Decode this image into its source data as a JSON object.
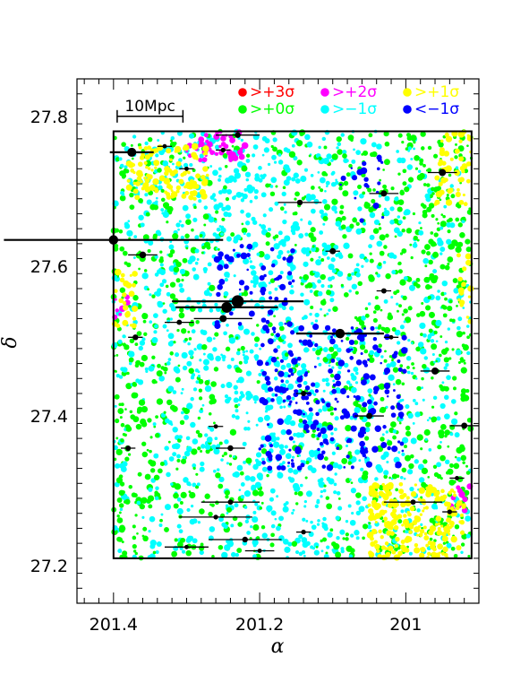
{
  "chart_data": {
    "type": "scatter",
    "title": "",
    "xlabel": "α",
    "ylabel": "δ",
    "xlim": [
      201.45,
      200.9
    ],
    "ylim": [
      27.15,
      27.85
    ],
    "x_ticks": [
      201.4,
      201.2,
      201
    ],
    "x_tick_labels": [
      "201.4",
      "201.2",
      "201"
    ],
    "y_ticks": [
      27.2,
      27.4,
      27.6,
      27.8
    ],
    "y_tick_labels": [
      "27.2",
      "27.4",
      "27.6",
      "27.8"
    ],
    "survey_box": {
      "ra": [
        201.4,
        200.91
      ],
      "dec": [
        27.21,
        27.78
      ]
    },
    "scale_bar": {
      "label": "10Mpc",
      "ra": [
        201.395,
        201.305
      ],
      "dec": 27.8
    },
    "legend": [
      {
        "label": ">+3σ",
        "color": "#ff0000"
      },
      {
        "label": ">+2σ",
        "color": "#ff00ff"
      },
      {
        "label": ">+1σ",
        "color": "#ffff00"
      },
      {
        "label": ">+0σ",
        "color": "#00ff00"
      },
      {
        "label": ">−1σ",
        "color": "#00ffff"
      },
      {
        "label": "<−1σ",
        "color": "#0000ff"
      }
    ],
    "density_regions": [
      {
        "level": ">+2σ",
        "color": "#ff00ff",
        "ra": [
          201.3,
          201.22
        ],
        "dec": [
          27.74,
          27.78
        ],
        "n": 45
      },
      {
        "level": ">+2σ",
        "color": "#ff00ff",
        "ra": [
          201.4,
          201.38
        ],
        "dec": [
          27.52,
          27.57
        ],
        "n": 8
      },
      {
        "level": ">+2σ",
        "color": "#ff00ff",
        "ra": [
          200.94,
          200.91
        ],
        "dec": [
          27.27,
          27.31
        ],
        "n": 12
      },
      {
        "level": ">+1σ",
        "color": "#ffff00",
        "ra": [
          201.38,
          201.27
        ],
        "dec": [
          27.69,
          27.76
        ],
        "n": 110
      },
      {
        "level": ">+1σ",
        "color": "#ffff00",
        "ra": [
          201.4,
          201.37
        ],
        "dec": [
          27.52,
          27.6
        ],
        "n": 25
      },
      {
        "level": ">+1σ",
        "color": "#ffff00",
        "ra": [
          201.05,
          200.92
        ],
        "dec": [
          27.21,
          27.31
        ],
        "n": 220
      },
      {
        "level": ">+1σ",
        "color": "#ffff00",
        "ra": [
          200.96,
          200.91
        ],
        "dec": [
          27.68,
          27.78
        ],
        "n": 50
      },
      {
        "level": ">+1σ",
        "color": "#ffff00",
        "ra": [
          200.93,
          200.91
        ],
        "dec": [
          27.52,
          27.62
        ],
        "n": 15
      },
      {
        "level": "<−1σ",
        "color": "#0000ff",
        "ra": [
          201.2,
          201.0
        ],
        "dec": [
          27.33,
          27.52
        ],
        "n": 240
      },
      {
        "level": "<−1σ",
        "color": "#0000ff",
        "ra": [
          201.26,
          201.15
        ],
        "dec": [
          27.52,
          27.63
        ],
        "n": 60
      },
      {
        "level": "<−1σ",
        "color": "#0000ff",
        "ra": [
          201.09,
          201.03
        ],
        "dec": [
          27.66,
          27.76
        ],
        "n": 20
      }
    ],
    "clusters": [
      {
        "ra": 201.375,
        "dec": 27.752,
        "size": 1.7,
        "err": 0.03
      },
      {
        "ra": 201.4,
        "dec": 27.635,
        "size": 1.8,
        "err": 0.15
      },
      {
        "ra": 201.36,
        "dec": 27.615,
        "size": 1.2,
        "err": 0.02
      },
      {
        "ra": 201.23,
        "dec": 27.553,
        "size": 2.4,
        "err": 0.09
      },
      {
        "ra": 201.245,
        "dec": 27.545,
        "size": 2.1,
        "err": 0.07
      },
      {
        "ra": 201.25,
        "dec": 27.53,
        "size": 1.3,
        "err": 0.04
      },
      {
        "ra": 201.31,
        "dec": 27.525,
        "size": 0.9,
        "err": 0.02
      },
      {
        "ra": 201.37,
        "dec": 27.505,
        "size": 1.0,
        "err": 0.01
      },
      {
        "ra": 201.09,
        "dec": 27.51,
        "size": 1.8,
        "err": 0.06
      },
      {
        "ra": 200.95,
        "dec": 27.725,
        "size": 1.3,
        "err": 0.02
      },
      {
        "ra": 201.03,
        "dec": 27.697,
        "size": 1.1,
        "err": 0.02
      },
      {
        "ra": 201.145,
        "dec": 27.685,
        "size": 1.0,
        "err": 0.03
      },
      {
        "ra": 201.1,
        "dec": 27.62,
        "size": 1.1,
        "err": 0.01
      },
      {
        "ra": 201.03,
        "dec": 27.567,
        "size": 0.9,
        "err": 0.01
      },
      {
        "ra": 200.96,
        "dec": 27.46,
        "size": 1.3,
        "err": 0.02
      },
      {
        "ra": 200.92,
        "dec": 27.387,
        "size": 1.1,
        "err": 0.02
      },
      {
        "ra": 201.05,
        "dec": 27.4,
        "size": 1.1,
        "err": 0.02
      },
      {
        "ra": 201.14,
        "dec": 27.43,
        "size": 0.9,
        "err": 0.01
      },
      {
        "ra": 201.24,
        "dec": 27.357,
        "size": 1.0,
        "err": 0.02
      },
      {
        "ra": 201.38,
        "dec": 27.357,
        "size": 0.9,
        "err": 0.01
      },
      {
        "ra": 201.23,
        "dec": 27.775,
        "size": 1.0,
        "err": 0.03
      },
      {
        "ra": 201.25,
        "dec": 27.755,
        "size": 0.8,
        "err": 0.01
      },
      {
        "ra": 201.33,
        "dec": 27.76,
        "size": 0.7,
        "err": 0.01
      },
      {
        "ra": 201.3,
        "dec": 27.73,
        "size": 0.7,
        "err": 0.01
      },
      {
        "ra": 201.24,
        "dec": 27.285,
        "size": 0.9,
        "err": 0.04
      },
      {
        "ra": 201.26,
        "dec": 27.265,
        "size": 0.8,
        "err": 0.05
      },
      {
        "ra": 201.22,
        "dec": 27.235,
        "size": 1.0,
        "err": 0.05
      },
      {
        "ra": 201.3,
        "dec": 27.225,
        "size": 0.7,
        "err": 0.03
      },
      {
        "ra": 201.2,
        "dec": 27.22,
        "size": 0.7,
        "err": 0.02
      },
      {
        "ra": 201.14,
        "dec": 27.245,
        "size": 0.8,
        "err": 0.01
      },
      {
        "ra": 200.99,
        "dec": 27.285,
        "size": 0.9,
        "err": 0.04
      },
      {
        "ra": 200.94,
        "dec": 27.272,
        "size": 0.8,
        "err": 0.01
      },
      {
        "ra": 200.93,
        "dec": 27.317,
        "size": 0.7,
        "err": 0.01
      },
      {
        "ra": 201.26,
        "dec": 27.386,
        "size": 0.7,
        "err": 0.01
      },
      {
        "ra": 201.02,
        "dec": 27.505,
        "size": 0.7,
        "err": 0.01
      }
    ]
  }
}
